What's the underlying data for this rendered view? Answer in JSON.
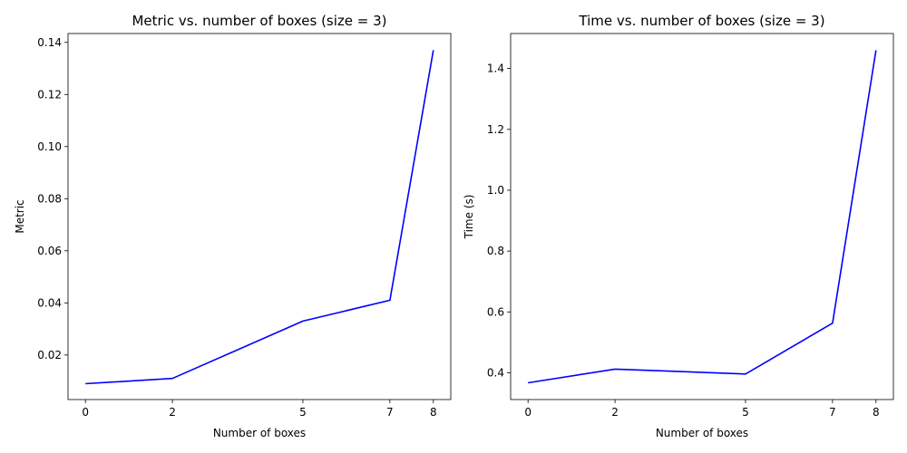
{
  "chart_data": [
    {
      "type": "line",
      "title": "Metric vs. number of boxes (size = 3)",
      "xlabel": "Number of boxes",
      "ylabel": "Metric",
      "x": [
        0,
        2,
        5,
        7,
        8
      ],
      "xticks": [
        0,
        2,
        5,
        7,
        8
      ],
      "yticks": [
        0.02,
        0.04,
        0.06,
        0.08,
        0.1,
        0.12,
        0.14
      ],
      "ytick_labels": [
        "0.02",
        "0.04",
        "0.06",
        "0.08",
        "0.10",
        "0.12",
        "0.14"
      ],
      "xlim": [
        -0.4,
        8.4
      ],
      "ylim": [
        0.0029,
        0.1434
      ],
      "grid": false,
      "series": [
        {
          "values": [
            0.009,
            0.011,
            0.033,
            0.041,
            0.137
          ],
          "color": "#0000ff"
        }
      ]
    },
    {
      "type": "line",
      "title": "Time vs. number of boxes (size = 3)",
      "xlabel": "Number of boxes",
      "ylabel": "Time (s)",
      "x": [
        0,
        2,
        5,
        7,
        8
      ],
      "xticks": [
        0,
        2,
        5,
        7,
        8
      ],
      "yticks": [
        0.4,
        0.6,
        0.8,
        1.0,
        1.2,
        1.4
      ],
      "ytick_labels": [
        "0.4",
        "0.6",
        "0.8",
        "1.0",
        "1.2",
        "1.4"
      ],
      "xlim": [
        -0.4,
        8.4
      ],
      "ylim": [
        0.312,
        1.515
      ],
      "grid": false,
      "series": [
        {
          "values": [
            0.367,
            0.412,
            0.396,
            0.563,
            1.46
          ],
          "color": "#0000ff"
        }
      ]
    }
  ]
}
